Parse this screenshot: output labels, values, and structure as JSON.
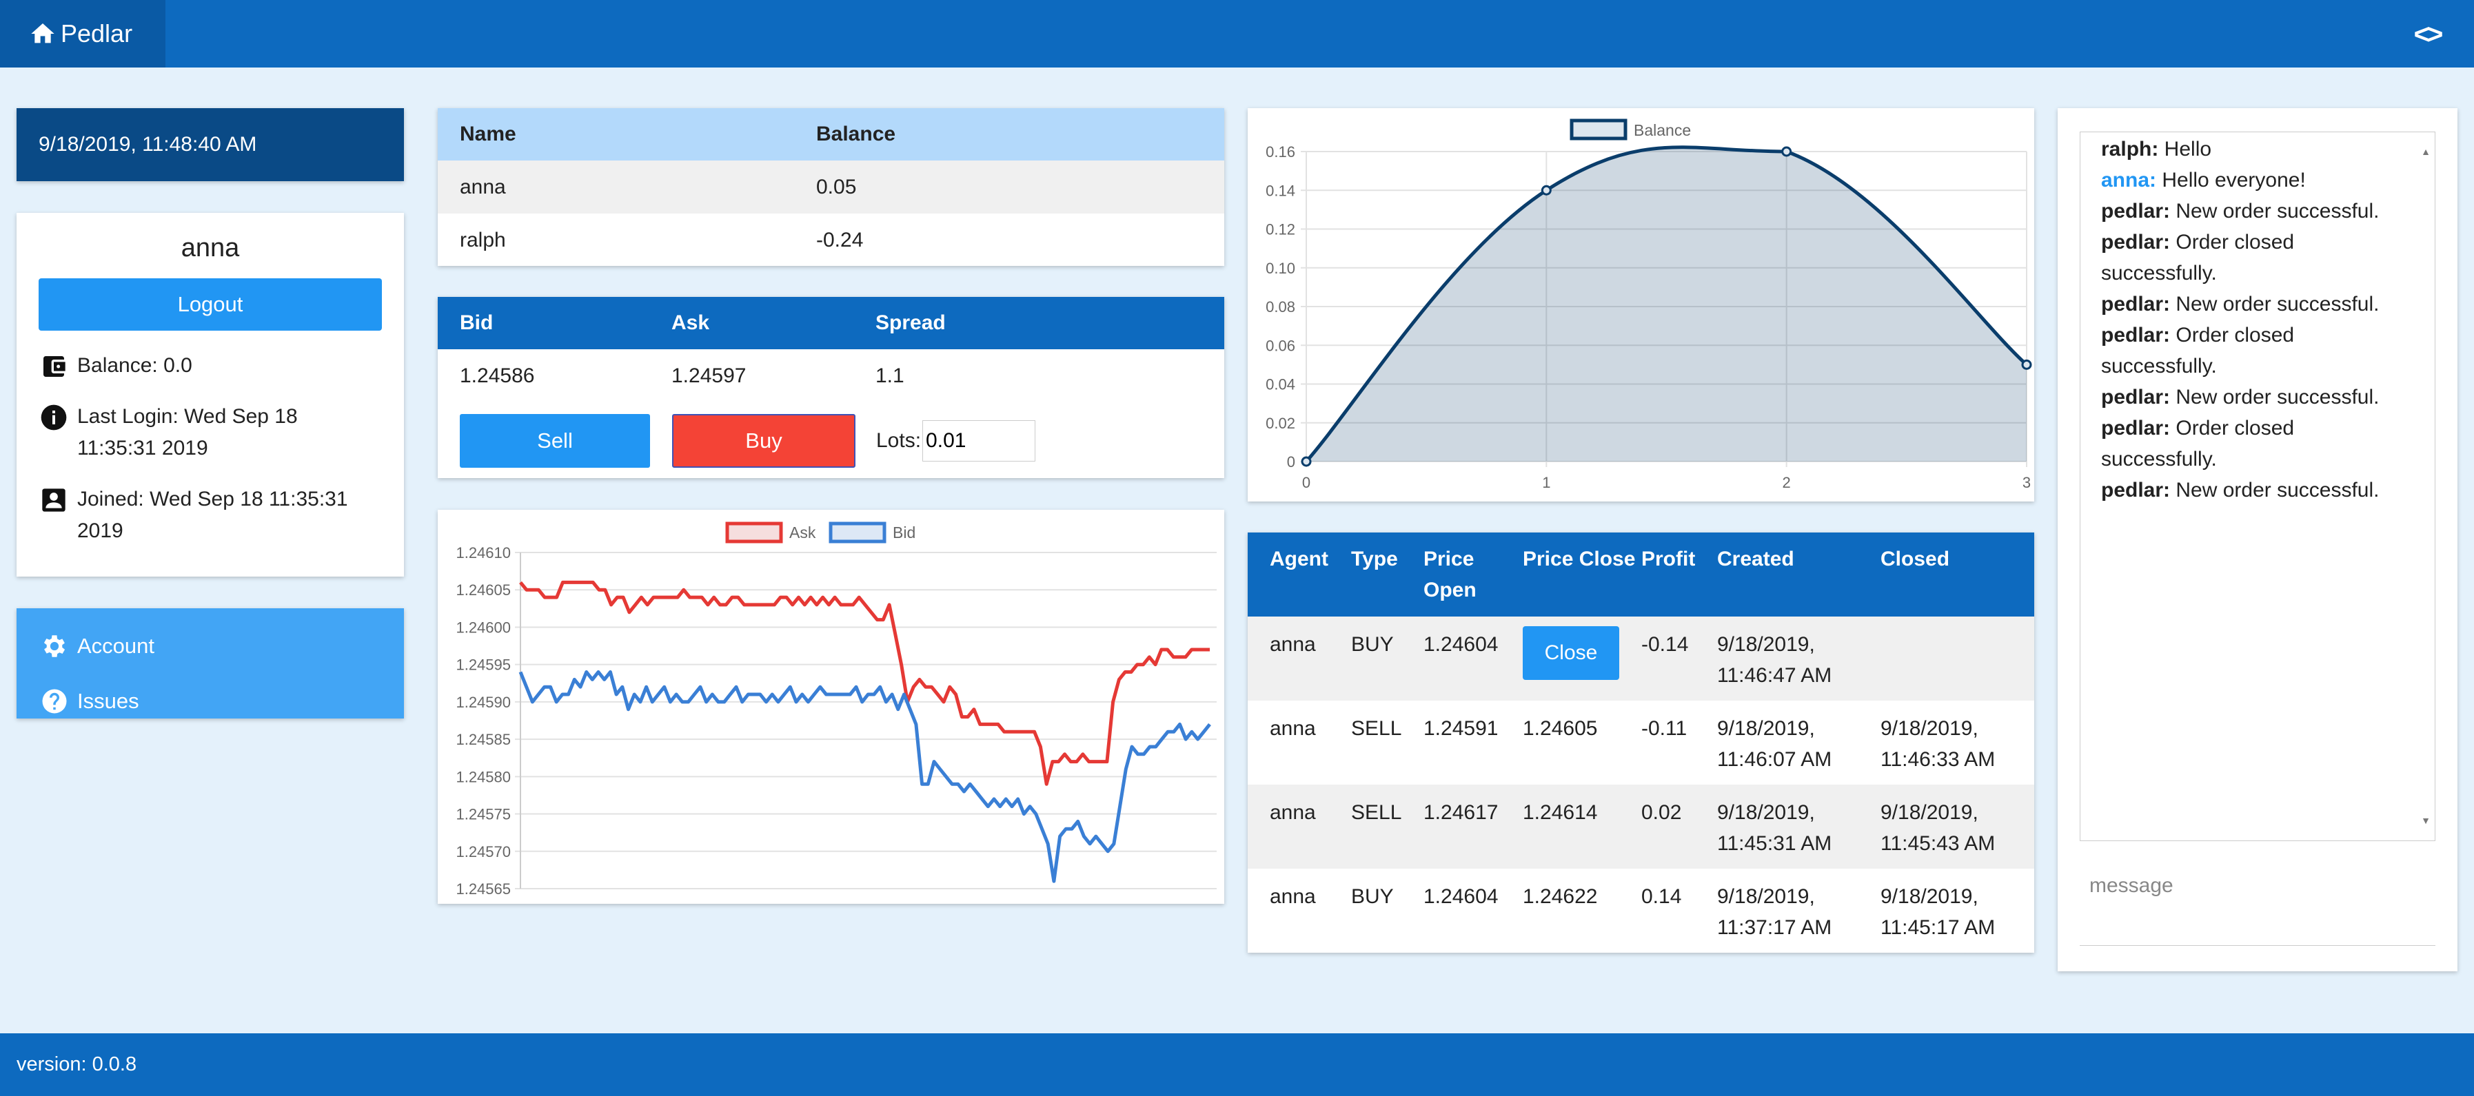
{
  "app": {
    "title": "Pedlar",
    "version": "version: 0.0.8"
  },
  "icons": {
    "home": "home-icon",
    "code": "code-icon",
    "wallet": "wallet-icon",
    "info": "info-icon",
    "account_box": "account-box-icon",
    "settings": "gear-icon",
    "help": "help-icon"
  },
  "colors": {
    "primary": "#0d6abf",
    "accent": "#2196f3",
    "buy": "#f44336",
    "ask_line": "#e53935",
    "bid_line": "#3a7fd5",
    "balance_line": "#0a3d6b"
  },
  "clock": "9/18/2019, 11:48:40 AM",
  "profile": {
    "username": "anna",
    "logout": "Logout",
    "balance": "Balance: 0.0",
    "last_login": "Last Login: Wed Sep 18 11:35:31 2019",
    "joined": "Joined: Wed Sep 18 11:35:31 2019"
  },
  "menu": {
    "account": "Account",
    "issues": "Issues"
  },
  "accounts": {
    "headers": [
      "Name",
      "Balance"
    ],
    "rows": [
      [
        "anna",
        "0.05"
      ],
      [
        "ralph",
        "-0.24"
      ]
    ]
  },
  "quote": {
    "headers": [
      "Bid",
      "Ask",
      "Spread"
    ],
    "values": [
      "1.24586",
      "1.24597",
      "1.1"
    ],
    "sell": "Sell",
    "buy": "Buy",
    "lots_label": "Lots:",
    "lots_value": "0.01"
  },
  "orders": {
    "headers": [
      "Agent",
      "Type",
      "Price Open",
      "Price Close",
      "Profit",
      "Created",
      "Closed"
    ],
    "close_label": "Close",
    "rows": [
      [
        "anna",
        "BUY",
        "1.24604",
        "",
        "-0.14",
        "9/18/2019, 11:46:47 AM",
        ""
      ],
      [
        "anna",
        "SELL",
        "1.24591",
        "1.24605",
        "-0.11",
        "9/18/2019, 11:46:07 AM",
        "9/18/2019, 11:46:33 AM"
      ],
      [
        "anna",
        "SELL",
        "1.24617",
        "1.24614",
        "0.02",
        "9/18/2019, 11:45:31 AM",
        "9/18/2019, 11:45:43 AM"
      ],
      [
        "anna",
        "BUY",
        "1.24604",
        "1.24622",
        "0.14",
        "9/18/2019, 11:37:17 AM",
        "9/18/2019, 11:45:17 AM"
      ]
    ]
  },
  "chat": {
    "messages": [
      {
        "from": "ralph:",
        "text": "Hello"
      },
      {
        "from": "anna:",
        "text": "Hello everyone!",
        "self": true
      },
      {
        "from": "pedlar:",
        "text": "New order successful."
      },
      {
        "from": "pedlar:",
        "text": "Order closed successfully."
      },
      {
        "from": "pedlar:",
        "text": "New order successful."
      },
      {
        "from": "pedlar:",
        "text": "Order closed successfully."
      },
      {
        "from": "pedlar:",
        "text": "New order successful."
      },
      {
        "from": "pedlar:",
        "text": "Order closed successfully."
      },
      {
        "from": "pedlar:",
        "text": "New order successful."
      }
    ],
    "placeholder": "message"
  },
  "chart_data": [
    {
      "type": "line",
      "legend": [
        "Ask",
        "Bid"
      ],
      "legend_position": "top",
      "grid": true,
      "ylim": [
        1.24565,
        1.2461
      ],
      "yticks": [
        "1.24610",
        "1.24605",
        "1.24600",
        "1.24595",
        "1.24590",
        "1.24585",
        "1.24580",
        "1.24575",
        "1.24570",
        "1.24565"
      ],
      "series": [
        {
          "name": "Ask",
          "values": [
            1.24606,
            1.24605,
            1.24605,
            1.24605,
            1.24604,
            1.24604,
            1.24604,
            1.24606,
            1.24606,
            1.24606,
            1.24606,
            1.24606,
            1.24606,
            1.24605,
            1.24605,
            1.24603,
            1.24604,
            1.24604,
            1.24602,
            1.24603,
            1.24604,
            1.24603,
            1.24604,
            1.24604,
            1.24604,
            1.24604,
            1.24604,
            1.24605,
            1.24604,
            1.24604,
            1.24604,
            1.24603,
            1.24604,
            1.24603,
            1.24603,
            1.24604,
            1.24604,
            1.24603,
            1.24603,
            1.24603,
            1.24603,
            1.24603,
            1.24603,
            1.24604,
            1.24604,
            1.24603,
            1.24604,
            1.24603,
            1.24604,
            1.24603,
            1.24604,
            1.24603,
            1.24604,
            1.24603,
            1.24603,
            1.24603,
            1.24604,
            1.24603,
            1.24602,
            1.24601,
            1.24601,
            1.24603,
            1.24599,
            1.24595,
            1.2459,
            1.24592,
            1.24593,
            1.24592,
            1.24592,
            1.24591,
            1.2459,
            1.24592,
            1.24591,
            1.24588,
            1.24588,
            1.24589,
            1.24587,
            1.24587,
            1.24587,
            1.24587,
            1.24586,
            1.24586,
            1.24586,
            1.24586,
            1.24586,
            1.24586,
            1.24584,
            1.24579,
            1.24582,
            1.24582,
            1.24583,
            1.24582,
            1.24582,
            1.24583,
            1.24582,
            1.24582,
            1.24582,
            1.24582,
            1.2459,
            1.24593,
            1.24594,
            1.24594,
            1.24595,
            1.24595,
            1.24596,
            1.24595,
            1.24597,
            1.24597,
            1.24596,
            1.24596,
            1.24596,
            1.24597,
            1.24597,
            1.24597,
            1.24597
          ]
        },
        {
          "name": "Bid",
          "values": [
            1.24594,
            1.24592,
            1.2459,
            1.24591,
            1.24592,
            1.24592,
            1.2459,
            1.24591,
            1.24591,
            1.24593,
            1.24592,
            1.24594,
            1.24593,
            1.24594,
            1.24593,
            1.24594,
            1.24591,
            1.24592,
            1.24589,
            1.24591,
            1.2459,
            1.24592,
            1.2459,
            1.24591,
            1.24592,
            1.2459,
            1.24591,
            1.2459,
            1.2459,
            1.24591,
            1.24592,
            1.2459,
            1.24591,
            1.2459,
            1.2459,
            1.24591,
            1.24592,
            1.2459,
            1.24591,
            1.24591,
            1.24591,
            1.2459,
            1.24591,
            1.2459,
            1.24591,
            1.24592,
            1.2459,
            1.24591,
            1.2459,
            1.24591,
            1.24592,
            1.24591,
            1.24591,
            1.24591,
            1.24591,
            1.24591,
            1.24592,
            1.2459,
            1.24591,
            1.24591,
            1.24592,
            1.2459,
            1.24591,
            1.24589,
            1.24591,
            1.24589,
            1.24587,
            1.24579,
            1.24579,
            1.24582,
            1.24581,
            1.2458,
            1.24579,
            1.24579,
            1.24578,
            1.24579,
            1.24578,
            1.24577,
            1.24576,
            1.24577,
            1.24576,
            1.24577,
            1.24576,
            1.24577,
            1.24575,
            1.24576,
            1.24575,
            1.24573,
            1.24571,
            1.24566,
            1.24572,
            1.24573,
            1.24573,
            1.24574,
            1.24572,
            1.24571,
            1.24572,
            1.24571,
            1.2457,
            1.24571,
            1.24576,
            1.24581,
            1.24584,
            1.24583,
            1.24583,
            1.24584,
            1.24584,
            1.24585,
            1.24586,
            1.24586,
            1.24587,
            1.24585,
            1.24586,
            1.24585,
            1.24586,
            1.24587
          ]
        }
      ]
    },
    {
      "type": "area",
      "legend": [
        "Balance"
      ],
      "legend_position": "top",
      "grid": true,
      "x": [
        0,
        1,
        2,
        3
      ],
      "values": [
        0,
        0.14,
        0.16,
        0.05
      ],
      "ylim": [
        0,
        0.16
      ],
      "yticks": [
        "0.16",
        "0.14",
        "0.12",
        "0.10",
        "0.08",
        "0.06",
        "0.04",
        "0.02",
        "0"
      ],
      "xticks": [
        "0",
        "1",
        "2",
        "3"
      ]
    }
  ]
}
